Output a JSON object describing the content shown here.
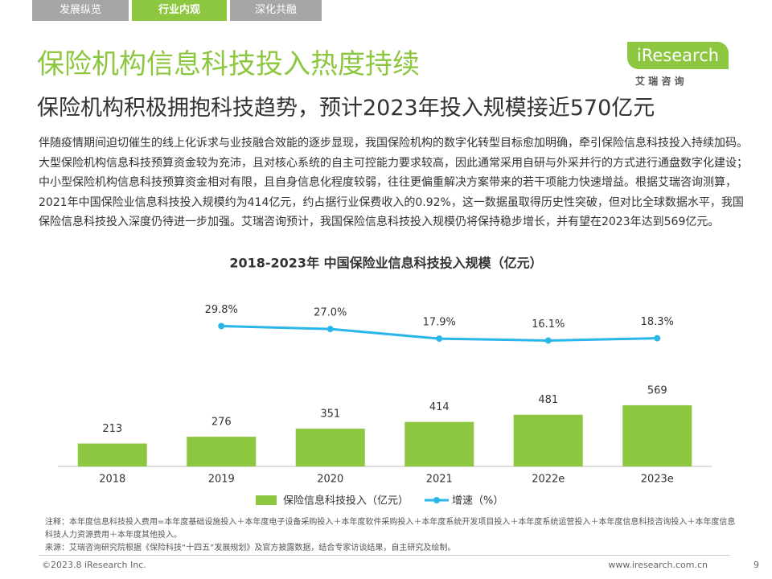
{
  "tabs": [
    "发展纵览",
    "行业内观",
    "深化共融"
  ],
  "title": "保险机构信息科技投入热度持续",
  "subtitle": "保险机构积极拥抱科技趋势，预计2023年投入规模接近570亿元",
  "logo": {
    "brand": "iResearch",
    "cn": "艾 瑞 咨 询"
  },
  "paragraph": "伴随疫情期间迫切催生的线上化诉求与业技融合效能的逐步显现，我国保险机构的数字化转型目标愈加明确，牵引保险信息科技投入持续加码。大型保险机构信息科技预算资金较为充沛，且对核心系统的自主可控能力要求较高，因此通常采用自研与外采并行的方式进行通盘数字化建设；中小型保险机构信息科技预算资金相对有限，且自身信息化程度较弱，往往更偏重解决方案带来的若干项能力快速增益。根据艾瑞咨询测算，2021年中国保险业信息科技投入规模约为414亿元，约占据行业保费收入的0.92%，这一数据虽取得历史性突破，但对比全球数据水平，我国保险信息科技投入深度仍待进一步加强。艾瑞咨询预计，我国保险信息科技投入规模仍将保持稳步增长，并有望在2023年达到569亿元。",
  "chart_data": {
    "type": "bar-line",
    "title": "2018-2023年 中国保险业信息科技投入规模（亿元）",
    "categories": [
      "2018",
      "2019",
      "2020",
      "2021",
      "2022e",
      "2023e"
    ],
    "ylim": [
      0,
      1720
    ],
    "y2lim": [
      -103,
      72
    ],
    "series": [
      {
        "name": "保险信息科技投入（亿元）",
        "type": "bar",
        "color": "#8dc63f",
        "values": [
          213,
          276,
          351,
          414,
          481,
          569
        ]
      },
      {
        "name": "增速（%）",
        "type": "line",
        "axis": "y2",
        "color": "#29b6e8",
        "values": [
          null,
          29.8,
          27.0,
          17.9,
          16.1,
          18.3
        ],
        "value_labels": [
          null,
          "29.8%",
          "27.0%",
          "17.9%",
          "16.1%",
          "18.3%"
        ]
      }
    ]
  },
  "notes": [
    "注释：本年度信息科技投入费用=本年度基础设施投入＋本年度电子设备采购投入＋本年度软件采购投入＋本年度系统开发项目投入＋本年度系统运营投入＋本年度信息科技咨询投入＋本年度信息科技人力资源费用＋本年度其他投入。",
    "来源：艾瑞咨询研究院根据《保险科技“十四五”发展规划》及官方披露数据，结合专家访谈结果，自主研究及绘制。"
  ],
  "footer": {
    "copyright": "©2023.8 iResearch Inc.",
    "site": "www.iresearch.com.cn",
    "page": "9"
  }
}
